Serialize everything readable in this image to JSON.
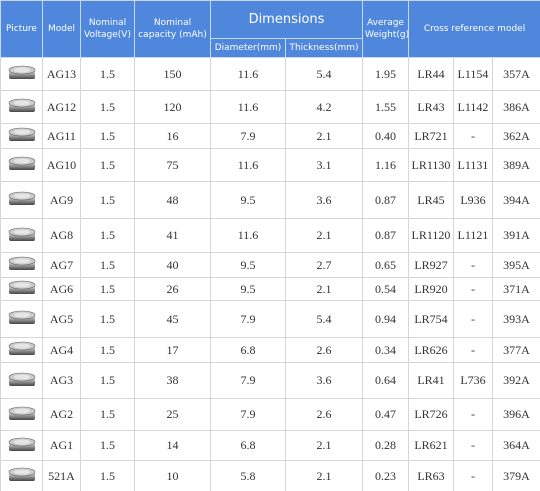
{
  "header": {
    "picture": "Picture",
    "model": "Model",
    "voltage": "Nominal Voltage(V)",
    "capacity": "Nominal capacity (mAh)",
    "dimensions": "Dimensions",
    "diameter": "Diameter(mm)",
    "thickness": "Thickness(mm)",
    "weight": "Average Weight(g)",
    "cross_reference": "Cross reference model"
  },
  "table": {
    "rows": [
      [
        "AG13",
        "1.5",
        "150",
        "11.6",
        "5.4",
        "1.95",
        "LR44",
        "L1154",
        "357A"
      ],
      [
        "AG12",
        "1.5",
        "120",
        "11.6",
        "4.2",
        "1.55",
        "LR43",
        "L1142",
        "386A"
      ],
      [
        "AG11",
        "1.5",
        "16",
        "7.9",
        "2.1",
        "0.40",
        "LR721",
        "-",
        "362A"
      ],
      [
        "AG10",
        "1.5",
        "75",
        "11.6",
        "3.1",
        "1.16",
        "LR1130",
        "L1131",
        "389A"
      ],
      [
        "AG9",
        "1.5",
        "48",
        "9.5",
        "3.6",
        "0.87",
        "LR45",
        "L936",
        "394A"
      ],
      [
        "AG8",
        "1.5",
        "41",
        "11.6",
        "2.1",
        "0.87",
        "LR1120",
        "L1121",
        "391A"
      ],
      [
        "AG7",
        "1.5",
        "40",
        "9.5",
        "2.7",
        "0.65",
        "LR927",
        "-",
        "395A"
      ],
      [
        "AG6",
        "1.5",
        "26",
        "9.5",
        "2.1",
        "0.54",
        "LR920",
        "-",
        "371A"
      ],
      [
        "AG5",
        "1.5",
        "45",
        "7.9",
        "5.4",
        "0.94",
        "LR754",
        "-",
        "393A"
      ],
      [
        "AG4",
        "1.5",
        "17",
        "6.8",
        "2.6",
        "0.34",
        "LR626",
        "-",
        "377A"
      ],
      [
        "AG3",
        "1.5",
        "38",
        "7.9",
        "3.6",
        "0.64",
        "LR41",
        "L736",
        "392A"
      ],
      [
        "AG2",
        "1.5",
        "25",
        "7.9",
        "2.6",
        "0.47",
        "LR726",
        "-",
        "396A"
      ],
      [
        "AG1",
        "1.5",
        "14",
        "6.8",
        "2.1",
        "0.28",
        "LR621",
        "-",
        "364A"
      ],
      [
        "521A",
        "1.5",
        "10",
        "5.8",
        "2.1",
        "0.23",
        "LR63",
        "-",
        "379A"
      ]
    ]
  }
}
